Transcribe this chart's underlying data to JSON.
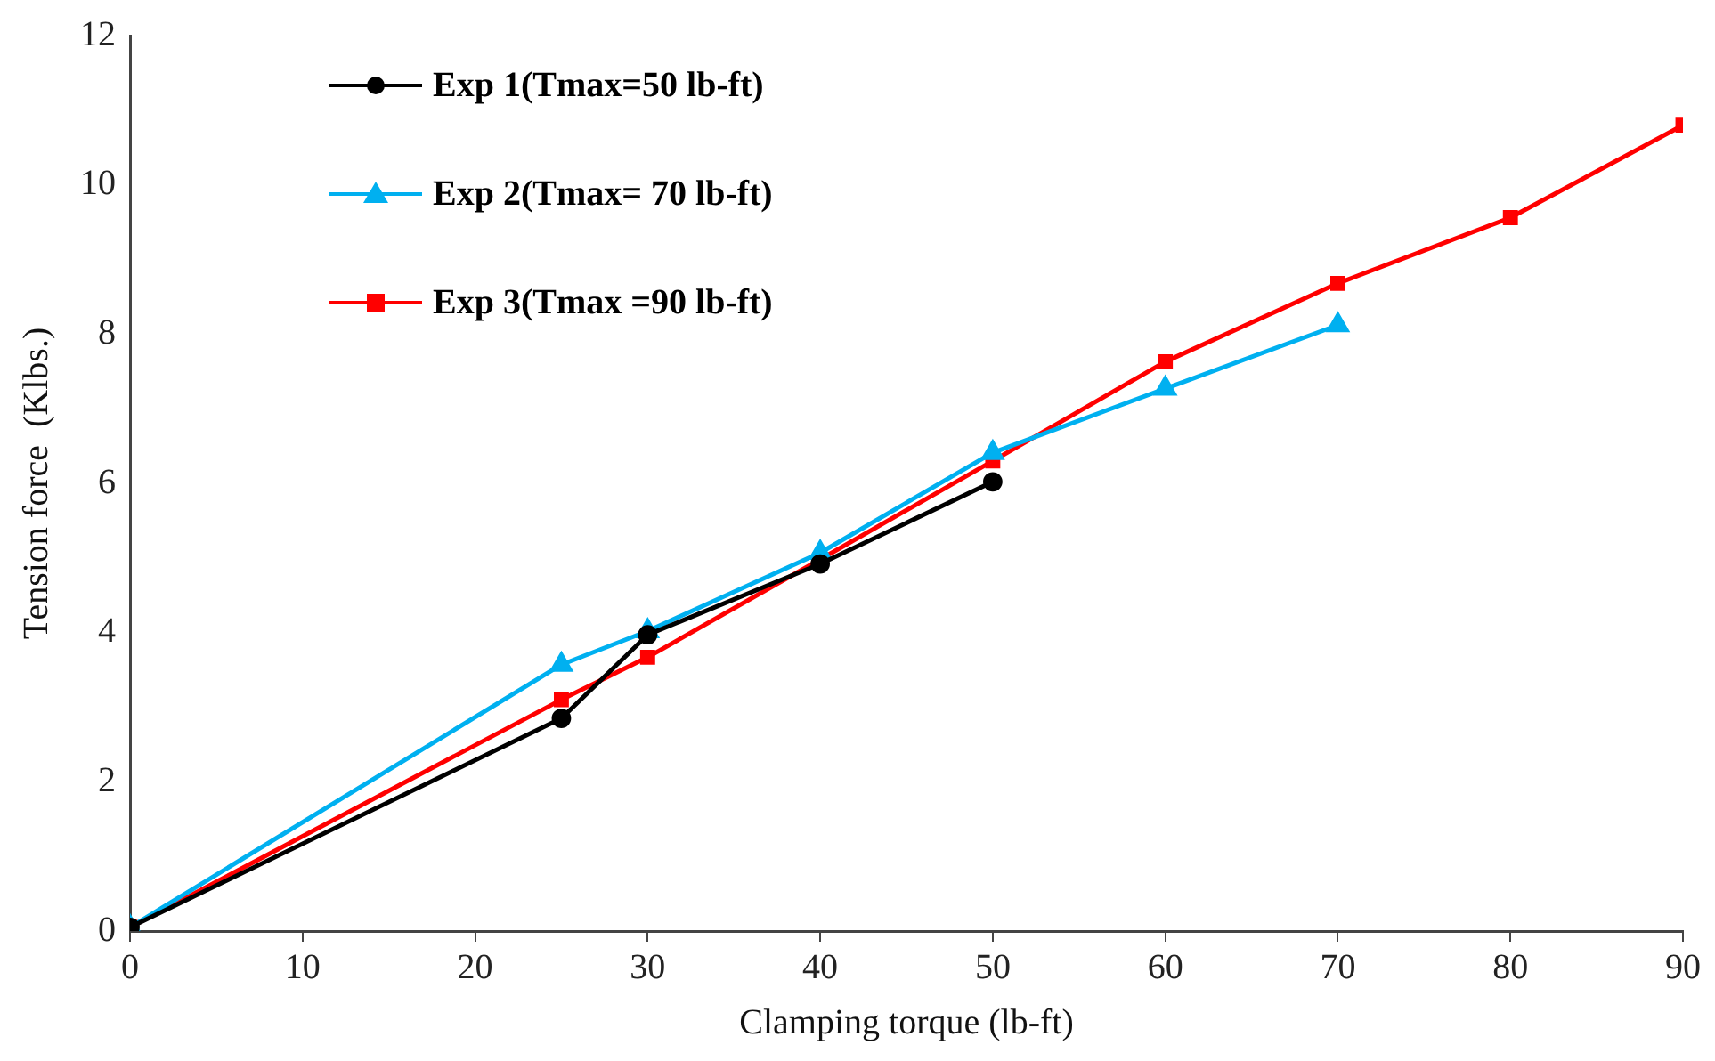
{
  "chart_data": {
    "type": "line",
    "xlabel": "Clamping torque (lb-ft)",
    "ylabel": "Tension force  (Klbs.)",
    "xlim": [
      0,
      90
    ],
    "xticks": [
      0,
      10,
      20,
      30,
      40,
      50,
      60,
      70,
      80,
      90
    ],
    "ylim": [
      0,
      12
    ],
    "yticks": [
      0,
      2,
      4,
      6,
      8,
      10,
      12
    ],
    "grid": false,
    "legend": "top left",
    "line_style": "solid",
    "series": [
      {
        "name": "Exp 1(Tmax=50 lb-ft)",
        "color": "#000000",
        "marker": "circle",
        "x": [
          0,
          25,
          30,
          40,
          50
        ],
        "values": [
          0.05,
          2.85,
          3.97,
          4.92,
          6.02
        ]
      },
      {
        "name": "Exp 2(Tmax= 70 lb-ft)",
        "color": "#00b0f0",
        "marker": "triangle",
        "x": [
          0,
          25,
          30,
          40,
          50,
          60,
          70
        ],
        "values": [
          0.05,
          3.57,
          4.02,
          5.07,
          6.41,
          7.27,
          8.12
        ]
      },
      {
        "name": "Exp 3(Tmax =90 lb-ft)",
        "color": "#ff0000",
        "marker": "square",
        "x": [
          0,
          25,
          30,
          40,
          50,
          60,
          70,
          80,
          90
        ],
        "values": [
          0.05,
          3.1,
          3.67,
          4.98,
          6.3,
          7.63,
          8.68,
          9.56,
          10.8
        ]
      }
    ]
  }
}
